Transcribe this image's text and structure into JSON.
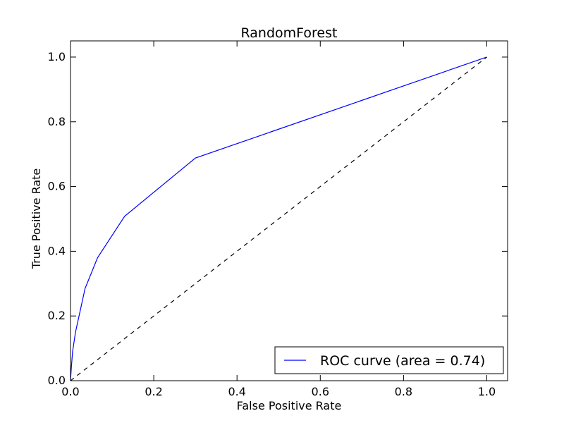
{
  "chart_data": {
    "type": "line",
    "title": "RandomForest",
    "xlabel": "False Positive Rate",
    "ylabel": "True Positive Rate",
    "xlim": [
      0.0,
      1.05
    ],
    "ylim": [
      0.0,
      1.05
    ],
    "x_ticks": [
      0.0,
      0.2,
      0.4,
      0.6,
      0.8,
      1.0
    ],
    "y_ticks": [
      0.0,
      0.2,
      0.4,
      0.6,
      0.8,
      1.0
    ],
    "x_tick_labels": [
      "0.0",
      "0.2",
      "0.4",
      "0.6",
      "0.8",
      "1.0"
    ],
    "y_tick_labels": [
      "0.0",
      "0.2",
      "0.4",
      "0.6",
      "0.8",
      "1.0"
    ],
    "grid": false,
    "legend_position": "lower-right",
    "series": [
      {
        "name": "ROC curve (area = 0.74)",
        "color": "#0000ff",
        "style": "solid",
        "x": [
          0.0,
          0.002,
          0.005,
          0.012,
          0.035,
          0.065,
          0.13,
          0.3,
          1.0
        ],
        "y": [
          0.0,
          0.04,
          0.09,
          0.15,
          0.285,
          0.38,
          0.508,
          0.688,
          1.0
        ]
      },
      {
        "name": "",
        "color": "#000000",
        "style": "dashed",
        "x": [
          0.0,
          1.0
        ],
        "y": [
          0.0,
          1.0
        ]
      }
    ]
  }
}
